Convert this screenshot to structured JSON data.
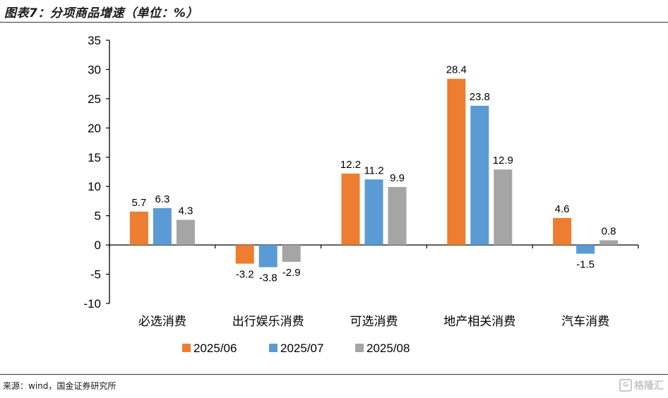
{
  "header": {
    "title": "图表7：分项商品增速（单位：%）"
  },
  "footer": {
    "source": "来源：wind，国金证券研究所",
    "watermark": "格隆汇",
    "watermark_icon": "G"
  },
  "colors": {
    "2025/06": "#ED7D31",
    "2025/07": "#5B9BD5",
    "2025/08": "#A5A5A5",
    "axis": "#000000",
    "rule": "#1f3b57"
  },
  "chart_data": {
    "type": "bar",
    "categories": [
      "必选消费",
      "出行娱乐消费",
      "可选消费",
      "地产相关消费",
      "汽车消费"
    ],
    "series": [
      {
        "name": "2025/06",
        "values": [
          5.7,
          -3.2,
          12.2,
          28.4,
          4.6
        ]
      },
      {
        "name": "2025/07",
        "values": [
          6.3,
          -3.8,
          11.2,
          23.8,
          -1.5
        ]
      },
      {
        "name": "2025/08",
        "values": [
          4.3,
          -2.9,
          9.9,
          12.9,
          0.8
        ]
      }
    ],
    "ylim": [
      -10,
      35
    ],
    "yticks": [
      -10,
      -5,
      0,
      5,
      10,
      15,
      20,
      25,
      30,
      35
    ],
    "grid": false,
    "legend": "bottom"
  }
}
